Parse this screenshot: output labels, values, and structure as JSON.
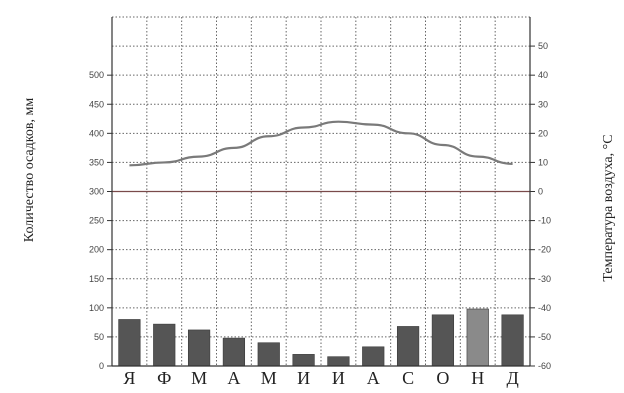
{
  "chart_data": {
    "type": "bar+line",
    "categories": [
      "Я",
      "Ф",
      "М",
      "А",
      "М",
      "И",
      "И",
      "А",
      "С",
      "О",
      "Н",
      "Д"
    ],
    "precipitation": {
      "axis": "left",
      "values": [
        80,
        72,
        62,
        48,
        40,
        20,
        16,
        33,
        68,
        88,
        98,
        88
      ]
    },
    "temperature": {
      "axis": "right",
      "values": [
        9,
        10,
        12,
        15,
        19,
        22,
        24,
        23,
        20,
        16,
        12,
        9.5
      ]
    },
    "ylabel_left": "Количество осадков, мм",
    "ylabel_right": "Температура воздуха, °С",
    "ylim_left": [
      0,
      600
    ],
    "ylim_right": [
      -60,
      60
    ],
    "yticks_left": [
      "0",
      "50",
      "100",
      "150",
      "200",
      "250",
      "300",
      "350",
      "400",
      "450",
      "500"
    ],
    "yticks_right": [
      "-60",
      "-50",
      "-40",
      "-30",
      "-20",
      "-10",
      "0",
      "10",
      "20",
      "30",
      "40",
      "50"
    ],
    "grid": true,
    "colors": {
      "bars": "#555555",
      "bars_light": "#8a8a8a",
      "line": "#7a7a7a",
      "zero_line": "#7a4a4a",
      "grid": "#666666",
      "axis": "#333333"
    }
  }
}
